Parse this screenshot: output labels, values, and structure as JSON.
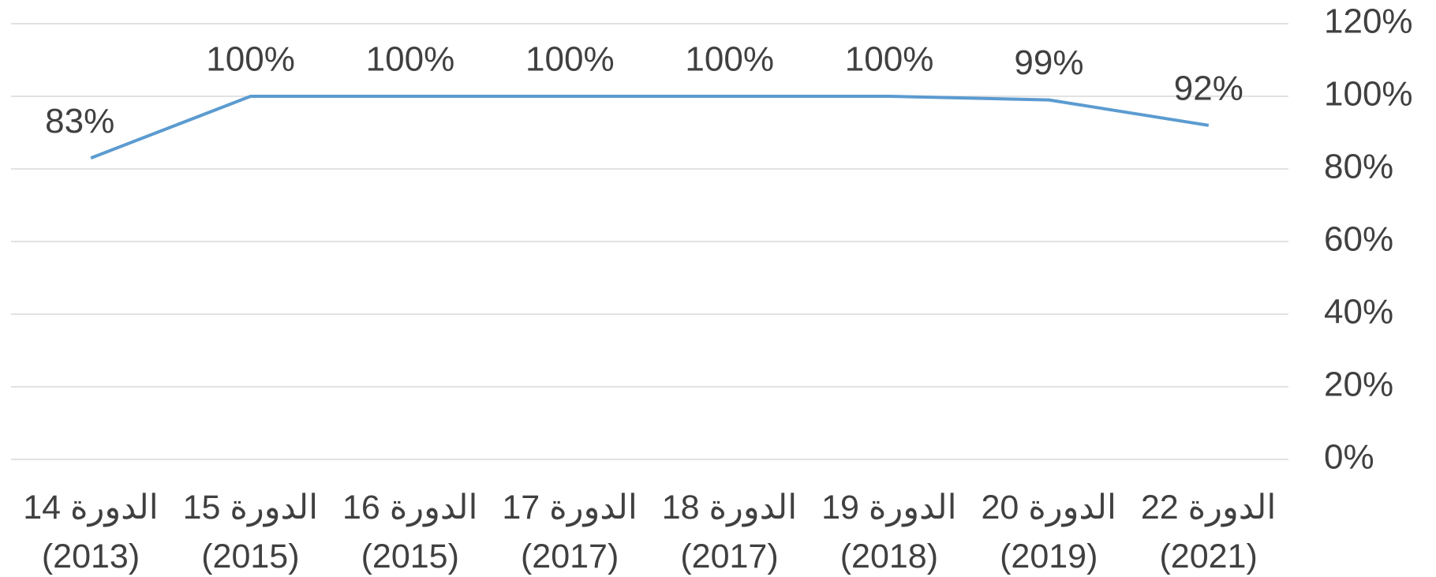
{
  "chart_data": {
    "type": "line",
    "categories": [
      "الدورة 14\n(2013)",
      "الدورة 15\n(2015)",
      "الدورة 16\n(2015)",
      "الدورة 17\n(2017)",
      "الدورة 18\n(2017)",
      "الدورة 19\n(2018)",
      "الدورة 20\n(2019)",
      "الدورة 22\n(2021)"
    ],
    "values": [
      83,
      100,
      100,
      100,
      100,
      100,
      99,
      92
    ],
    "value_labels": [
      "83%",
      "100%",
      "100%",
      "100%",
      "100%",
      "100%",
      "99%",
      "92%"
    ],
    "color": "#5b9bd0",
    "ylim": [
      0,
      120
    ],
    "yticks": [
      {
        "value": 0,
        "label": "0%"
      },
      {
        "value": 20,
        "label": "20%"
      },
      {
        "value": 40,
        "label": "40%"
      },
      {
        "value": 60,
        "label": "60%"
      },
      {
        "value": 80,
        "label": "80%"
      },
      {
        "value": 100,
        "label": "100%"
      },
      {
        "value": 120,
        "label": "120%"
      }
    ],
    "grid": true
  }
}
